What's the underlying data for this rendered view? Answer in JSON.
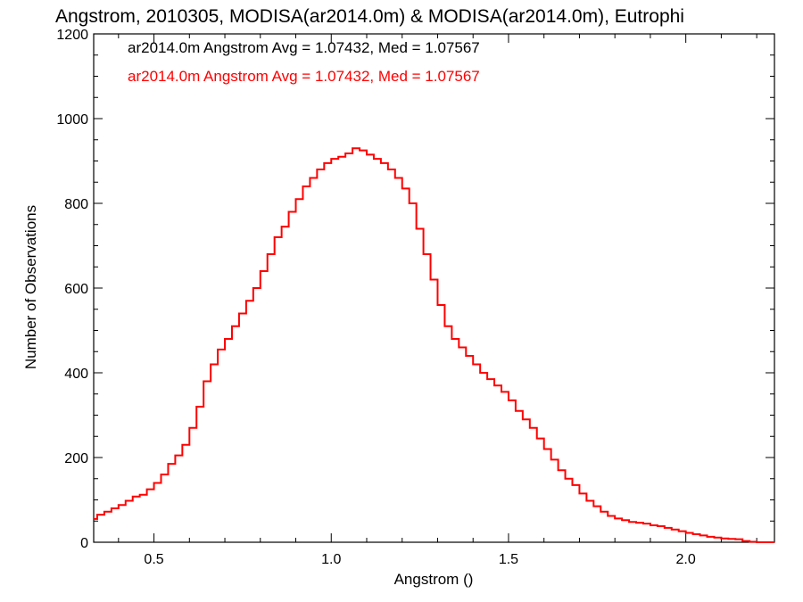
{
  "chart_data": {
    "type": "line",
    "title": "Angstrom, 2010305, MODISA(ar2014.0m) & MODISA(ar2014.0m), Eutrophi",
    "xlabel": "Angstrom ()",
    "ylabel": "Number of Observations",
    "xlim": [
      0.33,
      2.25
    ],
    "ylim": [
      0,
      1200
    ],
    "xticks": [
      0.5,
      1.0,
      1.5,
      2.0
    ],
    "xtick_labels": [
      "0.5",
      "1.0",
      "1.5",
      "2.0"
    ],
    "yticks": [
      0,
      200,
      400,
      600,
      800,
      1000,
      1200
    ],
    "ytick_labels": [
      "0",
      "200",
      "400",
      "600",
      "800",
      "1000",
      "1200"
    ],
    "grid": false,
    "annotations": [
      {
        "text": "ar2014.0m Angstrom Avg = 1.07432, Med = 1.07567",
        "color": "#000000"
      },
      {
        "text": "ar2014.0m Angstrom Avg = 1.07432, Med = 1.07567",
        "color": "#ff0000"
      }
    ],
    "series": [
      {
        "color": "#ff0000",
        "x": [
          0.33,
          0.35,
          0.37,
          0.39,
          0.41,
          0.43,
          0.45,
          0.47,
          0.49,
          0.51,
          0.53,
          0.55,
          0.57,
          0.59,
          0.61,
          0.63,
          0.65,
          0.67,
          0.69,
          0.71,
          0.73,
          0.75,
          0.77,
          0.79,
          0.81,
          0.83,
          0.85,
          0.87,
          0.89,
          0.91,
          0.93,
          0.95,
          0.97,
          0.99,
          1.01,
          1.03,
          1.05,
          1.07,
          1.09,
          1.11,
          1.13,
          1.15,
          1.17,
          1.19,
          1.21,
          1.23,
          1.25,
          1.27,
          1.29,
          1.31,
          1.33,
          1.35,
          1.37,
          1.39,
          1.41,
          1.43,
          1.45,
          1.47,
          1.49,
          1.51,
          1.53,
          1.55,
          1.57,
          1.59,
          1.61,
          1.63,
          1.65,
          1.67,
          1.69,
          1.71,
          1.73,
          1.75,
          1.77,
          1.79,
          1.81,
          1.83,
          1.85,
          1.87,
          1.89,
          1.91,
          1.93,
          1.95,
          1.97,
          1.99,
          2.01,
          2.03,
          2.05,
          2.07,
          2.09,
          2.11,
          2.13,
          2.15,
          2.17,
          2.19,
          2.21,
          2.23,
          2.25
        ],
        "values": [
          55,
          65,
          72,
          80,
          88,
          98,
          108,
          112,
          125,
          140,
          160,
          185,
          205,
          230,
          270,
          320,
          380,
          420,
          455,
          480,
          510,
          540,
          570,
          600,
          640,
          680,
          720,
          745,
          780,
          810,
          840,
          860,
          880,
          895,
          905,
          910,
          918,
          930,
          925,
          915,
          905,
          895,
          880,
          860,
          835,
          800,
          740,
          680,
          620,
          560,
          510,
          480,
          460,
          440,
          420,
          400,
          385,
          370,
          355,
          335,
          310,
          290,
          270,
          245,
          220,
          195,
          170,
          150,
          135,
          115,
          98,
          85,
          72,
          62,
          56,
          52,
          48,
          46,
          44,
          40,
          38,
          34,
          30,
          26,
          22,
          19,
          16,
          13,
          11,
          9,
          8,
          7,
          3,
          1,
          0,
          0,
          0
        ]
      }
    ]
  }
}
